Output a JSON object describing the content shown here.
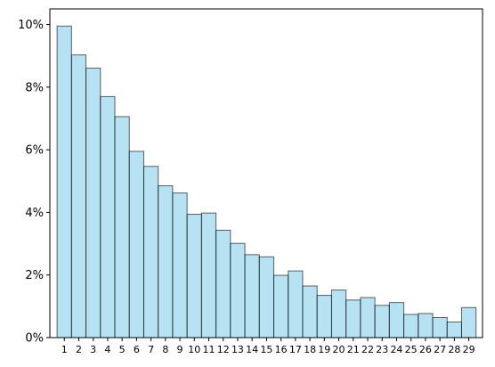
{
  "chart_data": {
    "type": "bar",
    "title": "",
    "xlabel": "",
    "ylabel": "",
    "categories": [
      "1",
      "2",
      "3",
      "4",
      "5",
      "6",
      "7",
      "8",
      "9",
      "10",
      "11",
      "12",
      "13",
      "14",
      "15",
      "16",
      "17",
      "18",
      "19",
      "20",
      "21",
      "22",
      "23",
      "24",
      "25",
      "26",
      "27",
      "28",
      "29"
    ],
    "values": [
      9.95,
      9.03,
      8.61,
      7.7,
      7.06,
      5.95,
      5.47,
      4.85,
      4.62,
      3.94,
      3.98,
      3.43,
      3.01,
      2.65,
      2.58,
      1.99,
      2.13,
      1.65,
      1.35,
      1.52,
      1.2,
      1.28,
      1.03,
      1.12,
      0.74,
      0.77,
      0.64,
      0.5,
      0.96
    ],
    "value_unit": "%",
    "ylim": [
      0,
      10.5
    ],
    "yticks": [
      0,
      2,
      4,
      6,
      8,
      10
    ],
    "ytick_labels": [
      "0%",
      "2%",
      "4%",
      "6%",
      "8%",
      "10%"
    ],
    "grid": false,
    "legend": "none",
    "colors": {
      "bar_fill": "#87ceeb",
      "bar_fill_opacity": 0.6,
      "bar_edge": "#000000",
      "axis": "#000000"
    }
  }
}
